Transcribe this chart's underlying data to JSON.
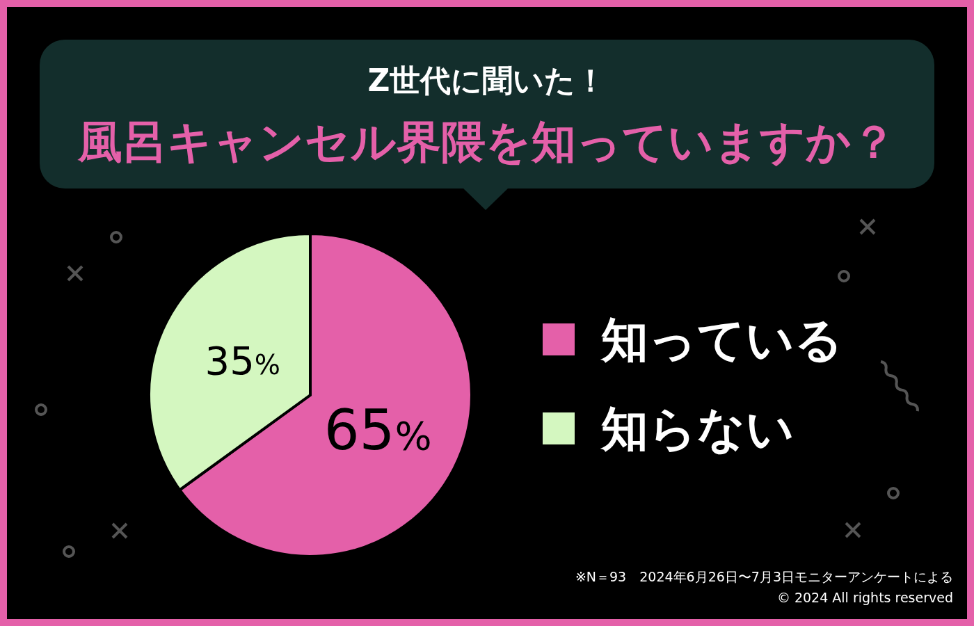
{
  "chart_data": {
    "type": "pie",
    "subtitle": "Z世代に聞いた！",
    "title": "風呂キャンセル界隈を知っていますか？",
    "categories": [
      "知っている",
      "知らない"
    ],
    "values": [
      65,
      35
    ],
    "colors": [
      "#e460a9",
      "#d4f7c0"
    ],
    "value_labels": [
      "65%",
      "35%"
    ],
    "legend": "right",
    "annotations": [
      "※N＝93　2024年6月26日〜7月3日モニターアンケートによる",
      "© 2024 All rights reserved"
    ]
  }
}
